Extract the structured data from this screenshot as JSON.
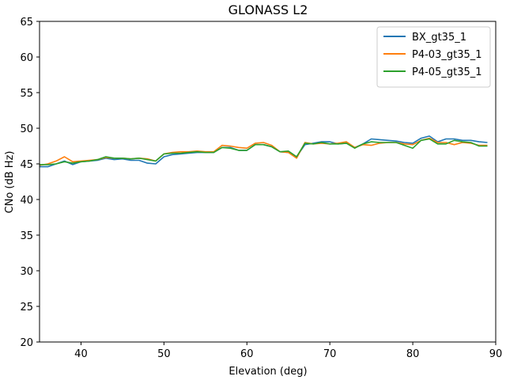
{
  "chart_data": {
    "type": "line",
    "title": "GLONASS L2",
    "xlabel": "Elevation (deg)",
    "ylabel": "CNo (dB Hz)",
    "xlim": [
      35,
      90
    ],
    "ylim": [
      20,
      65
    ],
    "xticks": [
      "40",
      "50",
      "60",
      "70",
      "80",
      "90"
    ],
    "yticks": [
      "20",
      "25",
      "30",
      "35",
      "40",
      "45",
      "50",
      "55",
      "60",
      "65"
    ],
    "grid": false,
    "legend_position": "top-right",
    "x": [
      35,
      36,
      37,
      38,
      39,
      40,
      41,
      42,
      43,
      44,
      45,
      46,
      47,
      48,
      49,
      50,
      51,
      52,
      53,
      54,
      55,
      56,
      57,
      58,
      59,
      60,
      61,
      62,
      63,
      64,
      65,
      66,
      67,
      68,
      69,
      70,
      71,
      72,
      73,
      74,
      75,
      76,
      77,
      78,
      79,
      80,
      81,
      82,
      83,
      84,
      85,
      86,
      87,
      88,
      89
    ],
    "series": [
      {
        "name": "BX_gt35_1",
        "color": "#1f77b4",
        "values": [
          44.6,
          44.6,
          45.0,
          45.4,
          44.9,
          45.3,
          45.4,
          45.5,
          45.8,
          45.6,
          45.7,
          45.5,
          45.5,
          45.1,
          45.0,
          46.0,
          46.3,
          46.4,
          46.5,
          46.6,
          46.6,
          46.6,
          47.3,
          47.3,
          46.9,
          46.9,
          47.7,
          47.7,
          47.4,
          46.7,
          46.6,
          46.0,
          47.7,
          47.9,
          48.1,
          48.1,
          47.8,
          47.9,
          47.3,
          47.8,
          48.5,
          48.4,
          48.3,
          48.2,
          48.0,
          47.9,
          48.6,
          48.9,
          48.1,
          48.5,
          48.5,
          48.3,
          48.3,
          48.1,
          48.0
        ]
      },
      {
        "name": "P4-03_gt35_1",
        "color": "#ff7f0e",
        "values": [
          44.8,
          45.0,
          45.4,
          46.0,
          45.3,
          45.4,
          45.5,
          45.6,
          45.9,
          45.8,
          45.8,
          45.7,
          45.8,
          45.7,
          45.4,
          46.4,
          46.6,
          46.7,
          46.7,
          46.8,
          46.7,
          46.7,
          47.6,
          47.5,
          47.3,
          47.2,
          47.9,
          48.0,
          47.6,
          46.7,
          46.6,
          45.8,
          48.0,
          47.8,
          47.9,
          47.8,
          47.9,
          48.1,
          47.3,
          47.7,
          47.6,
          47.9,
          48.0,
          48.0,
          47.8,
          47.7,
          48.3,
          48.6,
          48.0,
          48.0,
          47.7,
          48.0,
          47.9,
          47.6,
          47.6
        ]
      },
      {
        "name": "P4-05_gt35_1",
        "color": "#2ca02c",
        "values": [
          44.9,
          44.9,
          45.0,
          45.3,
          45.1,
          45.3,
          45.4,
          45.6,
          46.0,
          45.8,
          45.8,
          45.7,
          45.8,
          45.6,
          45.4,
          46.4,
          46.5,
          46.5,
          46.6,
          46.7,
          46.6,
          46.6,
          47.3,
          47.2,
          46.9,
          46.9,
          47.7,
          47.7,
          47.4,
          46.7,
          46.8,
          46.0,
          47.9,
          47.8,
          48.0,
          47.8,
          47.8,
          47.9,
          47.2,
          47.8,
          48.1,
          48.0,
          48.0,
          48.0,
          47.6,
          47.2,
          48.3,
          48.5,
          47.8,
          47.8,
          48.3,
          48.1,
          48.0,
          47.5,
          47.5
        ]
      }
    ]
  }
}
